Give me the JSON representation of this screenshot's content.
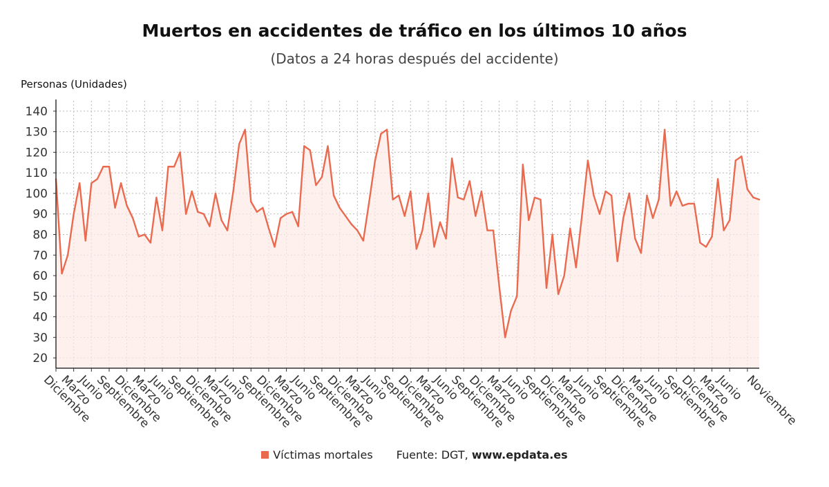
{
  "colors": {
    "line": "#ea6a4f",
    "area": "#fdeae5",
    "grid": "#b8b8b8",
    "axis": "#333333"
  },
  "legend": {
    "series_label": "Víctimas mortales",
    "source_prefix": "Fuente: DGT,",
    "source_site": "www.epdata.es"
  },
  "chart_data": {
    "type": "area",
    "title": "Muertos en accidentes de tráfico en los últimos 10 años",
    "subtitle": "(Datos a 24 horas después del accidente)",
    "ylabel": "Personas (Unidades)",
    "xlabel": "",
    "ylim": [
      15,
      145
    ],
    "yticks": [
      20,
      30,
      40,
      50,
      60,
      70,
      80,
      90,
      100,
      110,
      120,
      130,
      140
    ],
    "grid": true,
    "legend_position": "bottom",
    "x_tick_labels": [
      "Diciembre",
      "Marzo",
      "Junio",
      "Septiembre",
      "Diciembre",
      "Marzo",
      "Junio",
      "Septiembre",
      "Diciembre",
      "Marzo",
      "Junio",
      "Septiembre",
      "Diciembre",
      "Marzo",
      "Junio",
      "Septiembre",
      "Diciembre",
      "Marzo",
      "Junio",
      "Septiembre",
      "Diciembre",
      "Marzo",
      "Junio",
      "Septiembre",
      "Diciembre",
      "Marzo",
      "Junio",
      "Septiembre",
      "Diciembre",
      "Marzo",
      "Junio",
      "Septiembre",
      "Diciembre",
      "Marzo",
      "Junio",
      "Septiembre",
      "Diciembre",
      "Marzo",
      "Junio",
      "Noviembre"
    ],
    "series": [
      {
        "name": "Víctimas mortales",
        "values": [
          107,
          61,
          70,
          90,
          105,
          77,
          105,
          107,
          113,
          113,
          93,
          105,
          94,
          88,
          79,
          80,
          76,
          98,
          82,
          113,
          113,
          120,
          90,
          101,
          91,
          90,
          84,
          100,
          87,
          82,
          101,
          124,
          131,
          96,
          91,
          93,
          83,
          74,
          88,
          90,
          91,
          84,
          123,
          121,
          104,
          108,
          123,
          99,
          93,
          89,
          85,
          82,
          77,
          96,
          116,
          129,
          131,
          97,
          99,
          89,
          101,
          73,
          82,
          100,
          74,
          86,
          78,
          117,
          98,
          97,
          106,
          89,
          101,
          82,
          82,
          55,
          30,
          43,
          50,
          114,
          87,
          98,
          97,
          54,
          80,
          51,
          60,
          83,
          64,
          89,
          116,
          99,
          90,
          101,
          99,
          67,
          88,
          100,
          78,
          71,
          99,
          88,
          97,
          131,
          94,
          101,
          94,
          95,
          95,
          76,
          74,
          79,
          107,
          82,
          87,
          116,
          118,
          102,
          98,
          97
        ]
      }
    ]
  }
}
